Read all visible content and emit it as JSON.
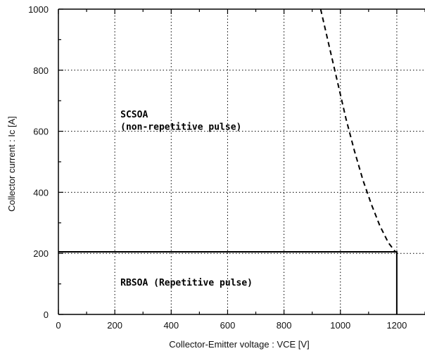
{
  "chart_data": {
    "type": "line",
    "title": "",
    "xlabel": "Collector-Emitter voltage  :  VCE [V]",
    "ylabel": "Collector  current  :  Ic [A]",
    "xlim": [
      0,
      1300
    ],
    "ylim": [
      0,
      1000
    ],
    "xticks": [
      0,
      200,
      400,
      600,
      800,
      1000,
      1200
    ],
    "yticks": [
      0,
      200,
      400,
      600,
      800,
      1000
    ],
    "x_minor_step": 100,
    "y_minor_step": 100,
    "grid": "dotted",
    "series": [
      {
        "name": "",
        "style": "solid",
        "color": "#000000",
        "points": [
          [
            0,
            205
          ],
          [
            1200,
            205
          ],
          [
            1200,
            0
          ]
        ]
      },
      {
        "name": "",
        "style": "dashed",
        "color": "#000000",
        "points": [
          [
            930,
            1000
          ],
          [
            960,
            880
          ],
          [
            990,
            760
          ],
          [
            1020,
            640
          ],
          [
            1050,
            535
          ],
          [
            1080,
            440
          ],
          [
            1110,
            360
          ],
          [
            1140,
            290
          ],
          [
            1170,
            235
          ],
          [
            1195,
            205
          ]
        ]
      }
    ],
    "annotations": [
      {
        "id": "scsoa-title",
        "text": "SCSOA",
        "x": 220,
        "y": 645
      },
      {
        "id": "scsoa-sub",
        "text": "(non-repetitive pulse)",
        "x": 220,
        "y": 605
      },
      {
        "id": "rbsoa",
        "text": "RBSOA  (Repetitive pulse)",
        "x": 220,
        "y": 95
      }
    ]
  }
}
